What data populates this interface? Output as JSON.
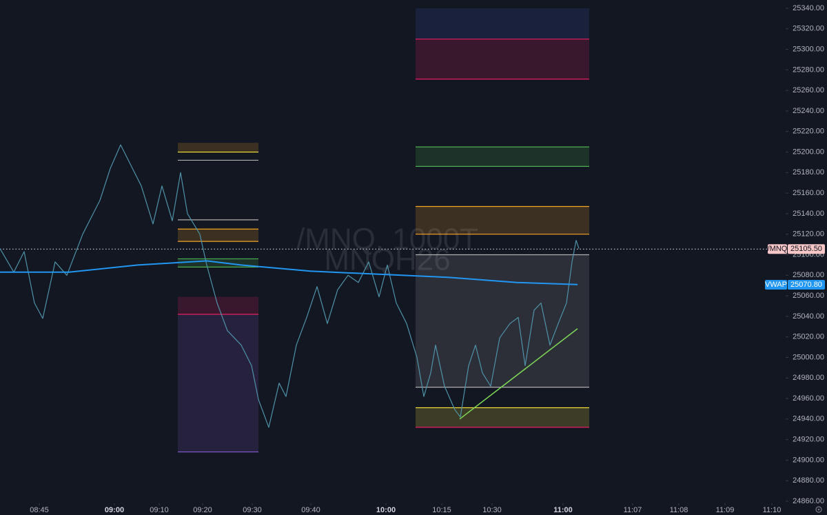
{
  "chart_data": {
    "type": "line",
    "watermark": [
      "/MNQ, 1000T",
      "MNQH26"
    ],
    "xlim": [
      0,
      114
    ],
    "ylim": [
      24860,
      25340
    ],
    "yticks": [
      {
        "value": 24860,
        "label": "24860.00"
      },
      {
        "value": 24880,
        "label": "24880.00"
      },
      {
        "value": 24900,
        "label": "24900.00"
      },
      {
        "value": 24920,
        "label": "24920.00"
      },
      {
        "value": 24940,
        "label": "24940.00"
      },
      {
        "value": 24960,
        "label": "24960.00"
      },
      {
        "value": 24980,
        "label": "24980.00"
      },
      {
        "value": 25000,
        "label": "25000.00"
      },
      {
        "value": 25020,
        "label": "25020.00"
      },
      {
        "value": 25040,
        "label": "25040.00"
      },
      {
        "value": 25060,
        "label": "25060.00"
      },
      {
        "value": 25080,
        "label": "25080.00"
      },
      {
        "value": 25100,
        "label": "25100.00"
      },
      {
        "value": 25120,
        "label": "25120.00"
      },
      {
        "value": 25140,
        "label": "25140.00"
      },
      {
        "value": 25160,
        "label": "25160.00"
      },
      {
        "value": 25180,
        "label": "25180.00"
      },
      {
        "value": 25200,
        "label": "25200.00"
      },
      {
        "value": 25220,
        "label": "25220.00"
      },
      {
        "value": 25240,
        "label": "25240.00"
      },
      {
        "value": 25260,
        "label": "25260.00"
      },
      {
        "value": 25280,
        "label": "25280.00"
      },
      {
        "value": 25300,
        "label": "25300.00"
      },
      {
        "value": 25320,
        "label": "25320.00"
      },
      {
        "value": 25340,
        "label": "25340.00"
      }
    ],
    "xticks": [
      {
        "value": 5.7,
        "label": "08:45"
      },
      {
        "value": 16.6,
        "label": "09:00",
        "bold": true
      },
      {
        "value": 23.1,
        "label": "09:10"
      },
      {
        "value": 29.4,
        "label": "09:20"
      },
      {
        "value": 36.6,
        "label": "09:30"
      },
      {
        "value": 45.1,
        "label": "09:40"
      },
      {
        "value": 56,
        "label": "10:00",
        "bold": true
      },
      {
        "value": 64.1,
        "label": "10:15"
      },
      {
        "value": 71.4,
        "label": "10:30"
      },
      {
        "value": 81.7,
        "label": "11:00",
        "bold": true
      },
      {
        "value": 91.8,
        "label": "11:07"
      },
      {
        "value": 98.5,
        "label": "11:08"
      },
      {
        "value": 105.2,
        "label": "11:09"
      },
      {
        "value": 112,
        "label": "11:10"
      }
    ],
    "series": [
      {
        "name": "/MNQ",
        "color": "#4f93a8",
        "tag_color": "#f7c6c7",
        "tag_text": "#131722",
        "dotted": true,
        "last": {
          "value": 25105.5,
          "label": "25105.50"
        },
        "x": [
          0,
          2,
          3.5,
          5,
          6.2,
          8,
          9.7,
          12,
          14.5,
          16,
          17.5,
          19,
          20.5,
          22.2,
          23.5,
          25,
          26.2,
          27.2,
          29,
          30,
          31.5,
          33,
          35,
          36.5,
          37.5,
          39,
          40.5,
          41.5,
          43,
          44.5,
          46,
          47.5,
          49,
          50.5,
          52,
          53.5,
          55,
          56.2,
          57.5,
          59,
          60.5,
          61.5,
          62.5,
          63.2,
          64.5,
          66,
          66.8,
          68,
          69,
          70,
          71.2,
          72.5,
          74,
          75.2,
          76.2,
          77.5,
          78.5,
          79.8,
          81,
          82.2,
          83,
          83.6,
          84
        ],
        "values": [
          25106,
          25083,
          25103,
          25053,
          25038,
          25093,
          25080,
          25120,
          25153,
          25184,
          25207,
          25187,
          25167,
          25130,
          25167,
          25133,
          25180,
          25140,
          25120,
          25090,
          25053,
          25026,
          25012,
          24992,
          24959,
          24932,
          24975,
          24962,
          25012,
          25039,
          25069,
          25033,
          25066,
          25080,
          25073,
          25093,
          25059,
          25090,
          25053,
          25033,
          25000,
          24962,
          24985,
          25012,
          24972,
          24949,
          24942,
          24992,
          25012,
          24985,
          24972,
          25019,
          25033,
          25039,
          24992,
          25046,
          25053,
          25012,
          25033,
          25053,
          25093,
          25114,
          25106
        ]
      },
      {
        "name": "VWAP",
        "color": "#2196f3",
        "tag_color": "#2196f3",
        "tag_text": "#ffffff",
        "last": {
          "value": 25070.8,
          "label": "25070.80"
        },
        "x": [
          0,
          10,
          20,
          30,
          35,
          45,
          55,
          65,
          75,
          83.8
        ],
        "values": [
          25083,
          25083,
          25090,
          25094,
          25090,
          25084,
          25081,
          25078,
          25073,
          25071
        ]
      }
    ],
    "zones": [
      {
        "x0": 25.8,
        "x1": 37.5,
        "y0": 25200,
        "y1": 25209,
        "fill": "#f5a623"
      },
      {
        "x0": 25.8,
        "x1": 37.5,
        "y0": 25113,
        "y1": 25125,
        "fill": "#f5a623"
      },
      {
        "x0": 25.8,
        "x1": 37.5,
        "y0": 25088,
        "y1": 25096,
        "fill": "#4caf50"
      },
      {
        "x0": 25.8,
        "x1": 37.5,
        "y0": 25042,
        "y1": 25059,
        "fill": "#e91e63"
      },
      {
        "x0": 25.8,
        "x1": 37.5,
        "y0": 24908,
        "y1": 25042,
        "fill": "#7e57c2"
      },
      {
        "x0": 60.3,
        "x1": 85.5,
        "y0": 25310,
        "y1": 25340,
        "fill": "#3f51b5"
      },
      {
        "x0": 60.3,
        "x1": 85.5,
        "y0": 25271,
        "y1": 25310,
        "fill": "#e91e63"
      },
      {
        "x0": 60.3,
        "x1": 85.5,
        "y0": 25186,
        "y1": 25205,
        "fill": "#4caf50"
      },
      {
        "x0": 60.3,
        "x1": 85.5,
        "y0": 25120,
        "y1": 25147,
        "fill": "#f5a623"
      },
      {
        "x0": 60.3,
        "x1": 85.5,
        "y0": 24971,
        "y1": 25100,
        "fill": "#9e9e9e"
      },
      {
        "x0": 60.3,
        "x1": 85.5,
        "y0": 24932,
        "y1": 24951,
        "fill": "#ffeb3b"
      }
    ],
    "levels": [
      {
        "x0": 25.8,
        "x1": 37.5,
        "y": 25200,
        "color": "#ffeb3b"
      },
      {
        "x0": 25.8,
        "x1": 37.5,
        "y": 25192,
        "color": "#b0b0b0"
      },
      {
        "x0": 25.8,
        "x1": 37.5,
        "y": 25134,
        "color": "#b0b0b0"
      },
      {
        "x0": 25.8,
        "x1": 37.5,
        "y": 25125,
        "color": "#f5a623"
      },
      {
        "x0": 25.8,
        "x1": 37.5,
        "y": 25113,
        "color": "#f5a623"
      },
      {
        "x0": 25.8,
        "x1": 37.5,
        "y": 25096,
        "color": "#4caf50"
      },
      {
        "x0": 25.8,
        "x1": 37.5,
        "y": 25088,
        "color": "#4caf50"
      },
      {
        "x0": 25.8,
        "x1": 37.5,
        "y": 25042,
        "color": "#e91e63"
      },
      {
        "x0": 25.8,
        "x1": 37.5,
        "y": 24908,
        "color": "#7e57c2"
      },
      {
        "x0": 60.3,
        "x1": 85.5,
        "y": 25310,
        "color": "#e91e63"
      },
      {
        "x0": 60.3,
        "x1": 85.5,
        "y": 25271,
        "color": "#e91e63"
      },
      {
        "x0": 60.3,
        "x1": 85.5,
        "y": 25205,
        "color": "#4caf50"
      },
      {
        "x0": 60.3,
        "x1": 85.5,
        "y": 25186,
        "color": "#4caf50"
      },
      {
        "x0": 60.3,
        "x1": 85.5,
        "y": 25147,
        "color": "#f5a623"
      },
      {
        "x0": 60.3,
        "x1": 85.5,
        "y": 25120,
        "color": "#f5a623"
      },
      {
        "x0": 60.3,
        "x1": 85.5,
        "y": 25100,
        "color": "#b0b0b0"
      },
      {
        "x0": 60.3,
        "x1": 85.5,
        "y": 24971,
        "color": "#b0b0b0"
      },
      {
        "x0": 60.3,
        "x1": 85.5,
        "y": 24951,
        "color": "#ffeb3b"
      },
      {
        "x0": 60.3,
        "x1": 85.5,
        "y": 24932,
        "color": "#e91e63"
      }
    ],
    "trendline": {
      "x": [
        66.7,
        83.8
      ],
      "y": [
        24940,
        25028
      ],
      "color": "#7ed957"
    }
  }
}
